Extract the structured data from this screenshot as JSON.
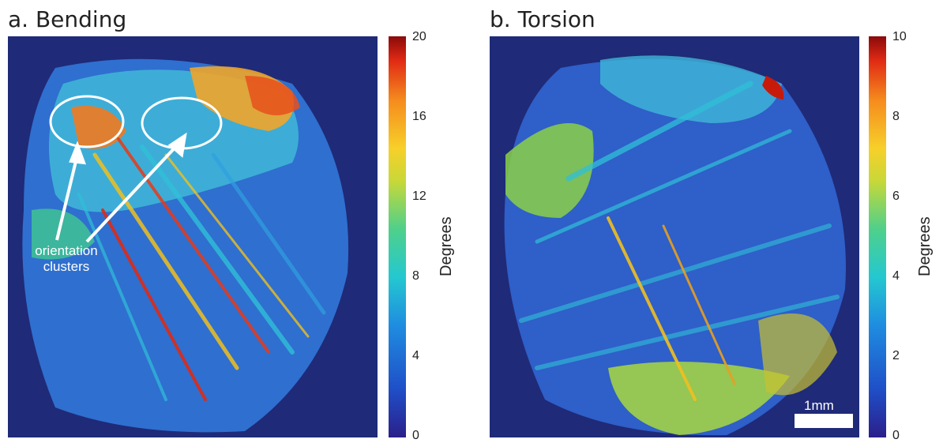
{
  "panels": [
    {
      "title": "a. Bending",
      "colorbar": {
        "label": "Degrees",
        "ticks": [
          "20",
          "16",
          "12",
          "8",
          "4",
          "0"
        ]
      },
      "annotation": {
        "line1": "orientation",
        "line2": "clusters"
      }
    },
    {
      "title": "b. Torsion",
      "colorbar": {
        "label": "Degrees",
        "ticks": [
          "10",
          "8",
          "6",
          "4",
          "2",
          "0"
        ]
      },
      "scalebar": {
        "label": "1mm"
      }
    }
  ],
  "colors": {
    "background": "#1f2a78",
    "low": "#1f4fc8",
    "mid": "#24c8d0",
    "high": "#e02a14"
  }
}
